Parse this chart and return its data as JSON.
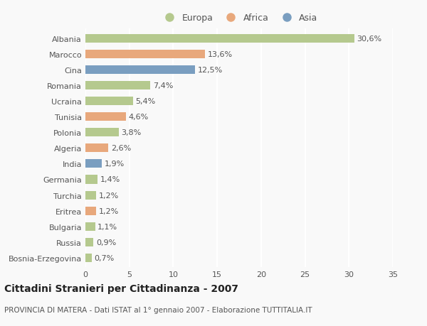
{
  "categories": [
    "Bosnia-Erzegovina",
    "Russia",
    "Bulgaria",
    "Eritrea",
    "Turchia",
    "Germania",
    "India",
    "Algeria",
    "Polonia",
    "Tunisia",
    "Ucraina",
    "Romania",
    "Cina",
    "Marocco",
    "Albania"
  ],
  "values": [
    0.7,
    0.9,
    1.1,
    1.2,
    1.2,
    1.4,
    1.9,
    2.6,
    3.8,
    4.6,
    5.4,
    7.4,
    12.5,
    13.6,
    30.6
  ],
  "labels": [
    "0,7%",
    "0,9%",
    "1,1%",
    "1,2%",
    "1,2%",
    "1,4%",
    "1,9%",
    "2,6%",
    "3,8%",
    "4,6%",
    "5,4%",
    "7,4%",
    "12,5%",
    "13,6%",
    "30,6%"
  ],
  "colors": [
    "#b5c98e",
    "#b5c98e",
    "#b5c98e",
    "#e8a87c",
    "#b5c98e",
    "#b5c98e",
    "#7a9ec0",
    "#e8a87c",
    "#b5c98e",
    "#e8a87c",
    "#b5c98e",
    "#b5c98e",
    "#7a9ec0",
    "#e8a87c",
    "#b5c98e"
  ],
  "legend": [
    {
      "label": "Europa",
      "color": "#b5c98e"
    },
    {
      "label": "Africa",
      "color": "#e8a87c"
    },
    {
      "label": "Asia",
      "color": "#7a9ec0"
    }
  ],
  "xlim": [
    0,
    35
  ],
  "xticks": [
    0,
    5,
    10,
    15,
    20,
    25,
    30,
    35
  ],
  "title": "Cittadini Stranieri per Cittadinanza - 2007",
  "subtitle": "PROVINCIA DI MATERA - Dati ISTAT al 1° gennaio 2007 - Elaborazione TUTTITALIA.IT",
  "background_color": "#f9f9f9",
  "bar_height": 0.55,
  "label_fontsize": 8,
  "tick_fontsize": 8,
  "title_fontsize": 10,
  "subtitle_fontsize": 7.5,
  "grid_color": "#ffffff",
  "text_color": "#555555",
  "title_color": "#222222"
}
